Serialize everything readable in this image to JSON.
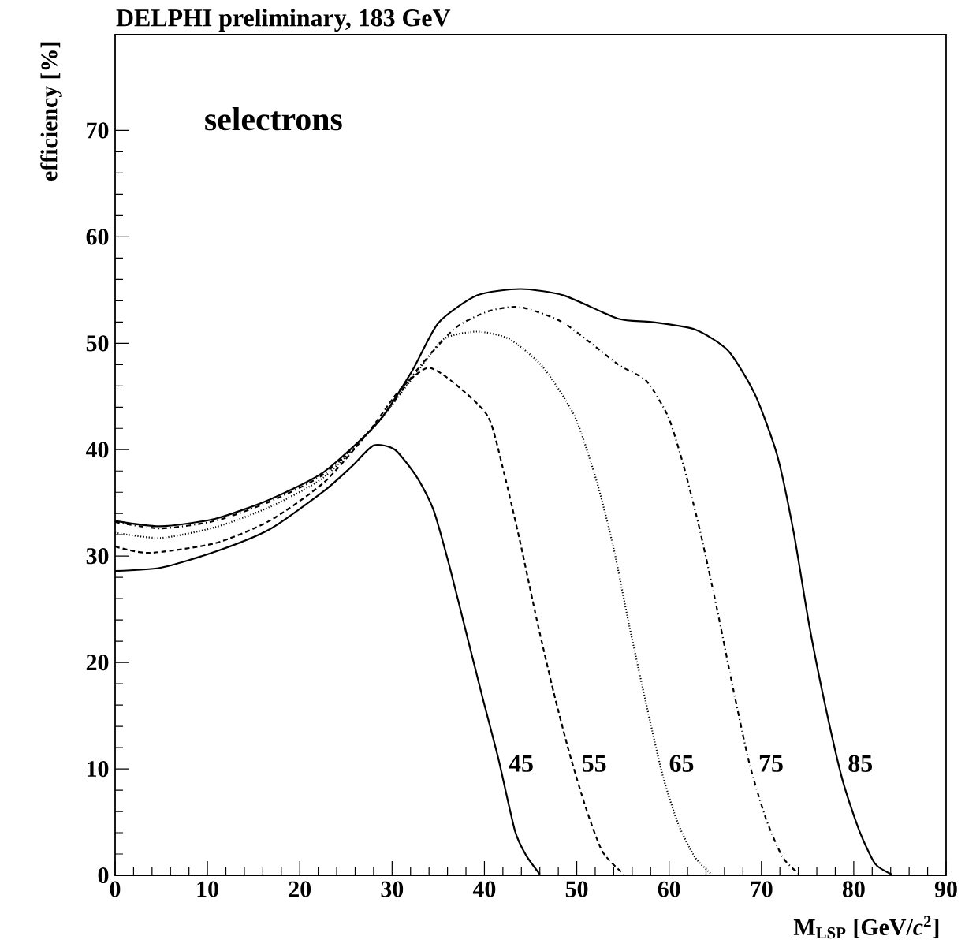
{
  "chart_data": {
    "type": "line",
    "title": "DELPHI preliminary, 183 GeV",
    "xlabel": "M$_{LSP}$ [GeV/*c*$^{2}$]",
    "ylabel": "efficiency [%]",
    "xlim": [
      0,
      90
    ],
    "ylim": [
      0,
      79
    ],
    "xticks": [
      0,
      10,
      20,
      30,
      40,
      50,
      60,
      70,
      80,
      90
    ],
    "yticks": [
      0,
      10,
      20,
      30,
      40,
      50,
      60,
      70
    ],
    "grid": false,
    "marker": "none",
    "annotations": [
      "selectrons",
      "45",
      "55",
      "65",
      "75",
      "85"
    ],
    "series": [
      {
        "color": "#000000",
        "line_style": "solid",
        "x": [
          0,
          4.9,
          10.8,
          16.7,
          22.6,
          25.6,
          28,
          30.3,
          32.7,
          34.5,
          36.2,
          38,
          39.8,
          41.5,
          43.3,
          44.5,
          46
        ],
        "values": [
          28.6,
          28.9,
          30.4,
          32.5,
          36.1,
          38.4,
          40.4,
          40,
          37.4,
          34.3,
          29.1,
          22.9,
          16.7,
          11,
          4.2,
          1.9,
          0.1
        ]
      },
      {
        "color": "#000000",
        "line_style": "dashed",
        "x": [
          0,
          3.7,
          10.8,
          16.7,
          22.6,
          27.4,
          30.9,
          33.9,
          36.8,
          40.4,
          42.1,
          43.9,
          45.7,
          47.5,
          49.2,
          51,
          52.8,
          55.1
        ],
        "values": [
          30.9,
          30.3,
          31.2,
          33.3,
          36.9,
          41.6,
          45.7,
          47.7,
          46.2,
          43.1,
          37.9,
          31.2,
          23.9,
          17.2,
          11.5,
          6.3,
          2.2,
          0.1
        ]
      },
      {
        "color": "#000000",
        "line_style": "dotted",
        "x": [
          0,
          4.9,
          10.8,
          16.7,
          22.6,
          28.5,
          32.7,
          35.6,
          39.2,
          42.7,
          46.3,
          49.8,
          52.2,
          54,
          55.7,
          57.5,
          59.3,
          61,
          62.8,
          64.6
        ],
        "values": [
          32.2,
          31.7,
          32.7,
          34.6,
          37.4,
          42.6,
          47.3,
          50.4,
          51.1,
          50.4,
          47.8,
          43.1,
          36.9,
          30.7,
          23.4,
          16.2,
          9.4,
          4.8,
          1.7,
          0.1
        ]
      },
      {
        "color": "#000000",
        "line_style": "dashdot",
        "x": [
          0,
          4.9,
          10.8,
          16.7,
          22.6,
          28.5,
          32.7,
          36.8,
          40.4,
          43.9,
          48.6,
          54.5,
          57.5,
          59.9,
          61.6,
          63.4,
          65.2,
          66.9,
          68.7,
          70.5,
          72.3,
          74.1
        ],
        "values": [
          33.2,
          32.6,
          33.3,
          35.1,
          37.7,
          42.6,
          47.5,
          51.4,
          53,
          53.4,
          51.9,
          48,
          46.5,
          43.1,
          38.4,
          32.2,
          25,
          17.7,
          10.5,
          5.3,
          1.7,
          0.1
        ]
      },
      {
        "color": "#000000",
        "line_style": "solid",
        "x": [
          0,
          4.9,
          10.8,
          16.7,
          22.6,
          28.5,
          32.1,
          35,
          39.2,
          43.9,
          48.6,
          54.5,
          58.1,
          62.8,
          66.4,
          69.3,
          71.7,
          73.5,
          75.2,
          77,
          78.8,
          80.6,
          82.3,
          84.1
        ],
        "values": [
          33.3,
          32.8,
          33.5,
          35.3,
          37.9,
          42.6,
          47.3,
          51.9,
          54.5,
          55.1,
          54.5,
          52.3,
          52,
          51.3,
          49.3,
          45.2,
          39.5,
          32.2,
          23.4,
          15.6,
          8.9,
          4.2,
          1.1,
          0.1
        ]
      }
    ]
  }
}
